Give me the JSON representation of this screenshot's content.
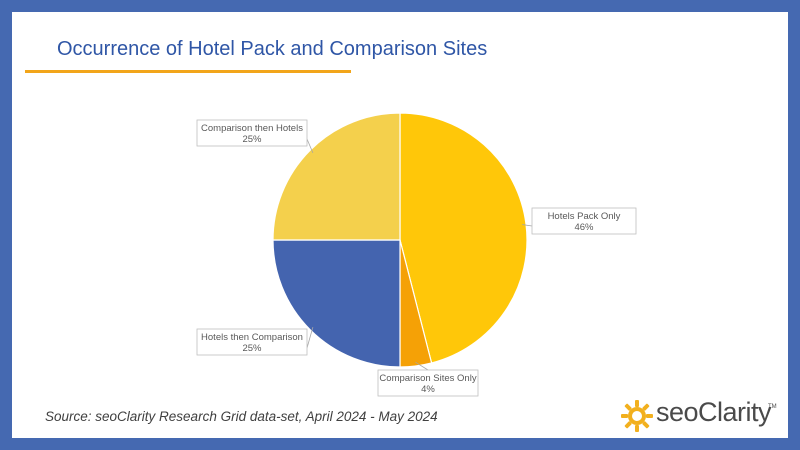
{
  "slide": {
    "title": "Occurrence of Hotel Pack and Comparison Sites",
    "source": "Source: seoClarity Research Grid data-set, April 2024 - May 2024"
  },
  "logo": {
    "text": "seoClarity",
    "tm": "TM",
    "icon": "sun-gear-icon"
  },
  "colors": {
    "background": "#4569B1",
    "title": "#2F56A6",
    "title_rule": "#F2A51A"
  },
  "chart_data": {
    "type": "pie",
    "slices": [
      {
        "label": "Hotels Pack Only",
        "value": 46,
        "display": "46%",
        "color": "#FFC709"
      },
      {
        "label": "Comparison Sites Only",
        "value": 4,
        "display": "4%",
        "color": "#F5A106"
      },
      {
        "label": "Hotels then Comparison",
        "value": 25,
        "display": "25%",
        "color": "#4464AF"
      },
      {
        "label": "Comparison then Hotels",
        "value": 25,
        "display": "25%",
        "color": "#F4D04C"
      }
    ]
  }
}
